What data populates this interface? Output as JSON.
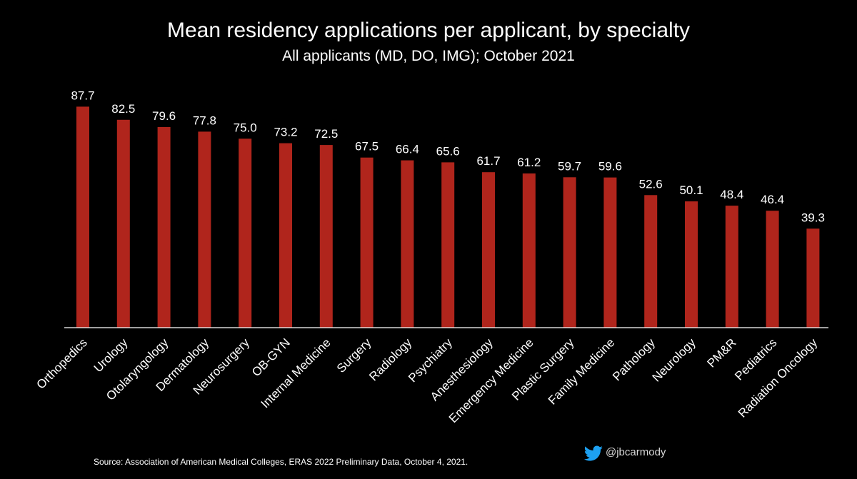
{
  "chart_data": {
    "type": "bar",
    "title": "Mean residency applications per applicant, by specialty",
    "subtitle": "All applicants (MD, DO, IMG); October 2021",
    "xlabel": "",
    "ylabel": "",
    "ylim": [
      0,
      100
    ],
    "grid": false,
    "categories": [
      "Orthopedics",
      "Urology",
      "Otolaryngology",
      "Dermatology",
      "Neurosurgery",
      "OB-GYN",
      "Internal Medicine",
      "Surgery",
      "Radiology",
      "Psychiatry",
      "Anesthesiology",
      "Emergency Medicine",
      "Plastic Surgery",
      "Family Medicine",
      "Pathology",
      "Neurology",
      "PM&R",
      "Pediatrics",
      "Radiation Oncology"
    ],
    "values": [
      87.7,
      82.5,
      79.6,
      77.8,
      75.0,
      73.2,
      72.5,
      67.5,
      66.4,
      65.6,
      61.7,
      61.2,
      59.7,
      59.6,
      52.6,
      50.1,
      48.4,
      46.4,
      39.3
    ],
    "value_labels": [
      "87.7",
      "82.5",
      "79.6",
      "77.8",
      "75.0",
      "73.2",
      "72.5",
      "67.5",
      "66.4",
      "65.6",
      "61.7",
      "61.2",
      "59.7",
      "59.6",
      "52.6",
      "50.1",
      "48.4",
      "46.4",
      "39.3"
    ],
    "source": "Source: Association of American Medical Colleges, ERAS 2022 Preliminary Data, October 4, 2021."
  },
  "branding": {
    "twitter_handle": "@jbcarmody",
    "icon": "twitter-bird-icon"
  },
  "colors": {
    "background": "#000000",
    "bar": "#b0251c",
    "text": "#ffffff",
    "axis": "#ffffff",
    "twitter": "#1da1f2"
  }
}
